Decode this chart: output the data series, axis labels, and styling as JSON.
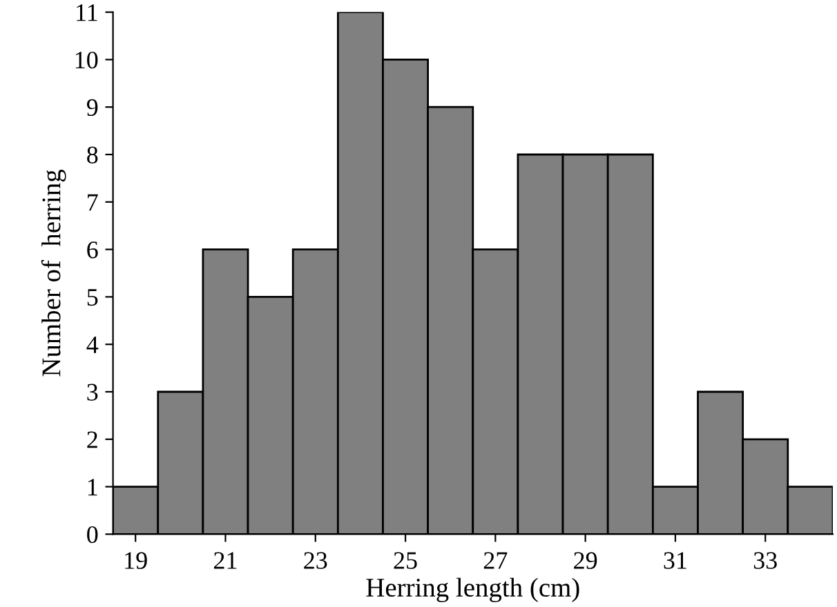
{
  "chart_data": {
    "type": "histogram",
    "xlabel": "Herring length (cm)",
    "ylabel": "Number of  herring",
    "bins": [
      18.5,
      19.5,
      20.5,
      21.5,
      22.5,
      23.5,
      24.5,
      25.5,
      26.5,
      27.5,
      28.5,
      29.5,
      30.5,
      31.5,
      32.5,
      33.5,
      34.5
    ],
    "values": [
      1,
      3,
      6,
      5,
      6,
      11,
      10,
      9,
      6,
      8,
      8,
      8,
      1,
      3,
      2,
      1
    ],
    "color": "#808080",
    "xlim": [
      18.5,
      34.5
    ],
    "xticks": [
      19,
      21,
      23,
      25,
      27,
      29,
      31,
      33
    ],
    "ylim": [
      0,
      11
    ],
    "yticks": [
      0,
      1,
      2,
      3,
      4,
      5,
      6,
      7,
      8,
      9,
      10,
      11
    ],
    "grid": false
  }
}
